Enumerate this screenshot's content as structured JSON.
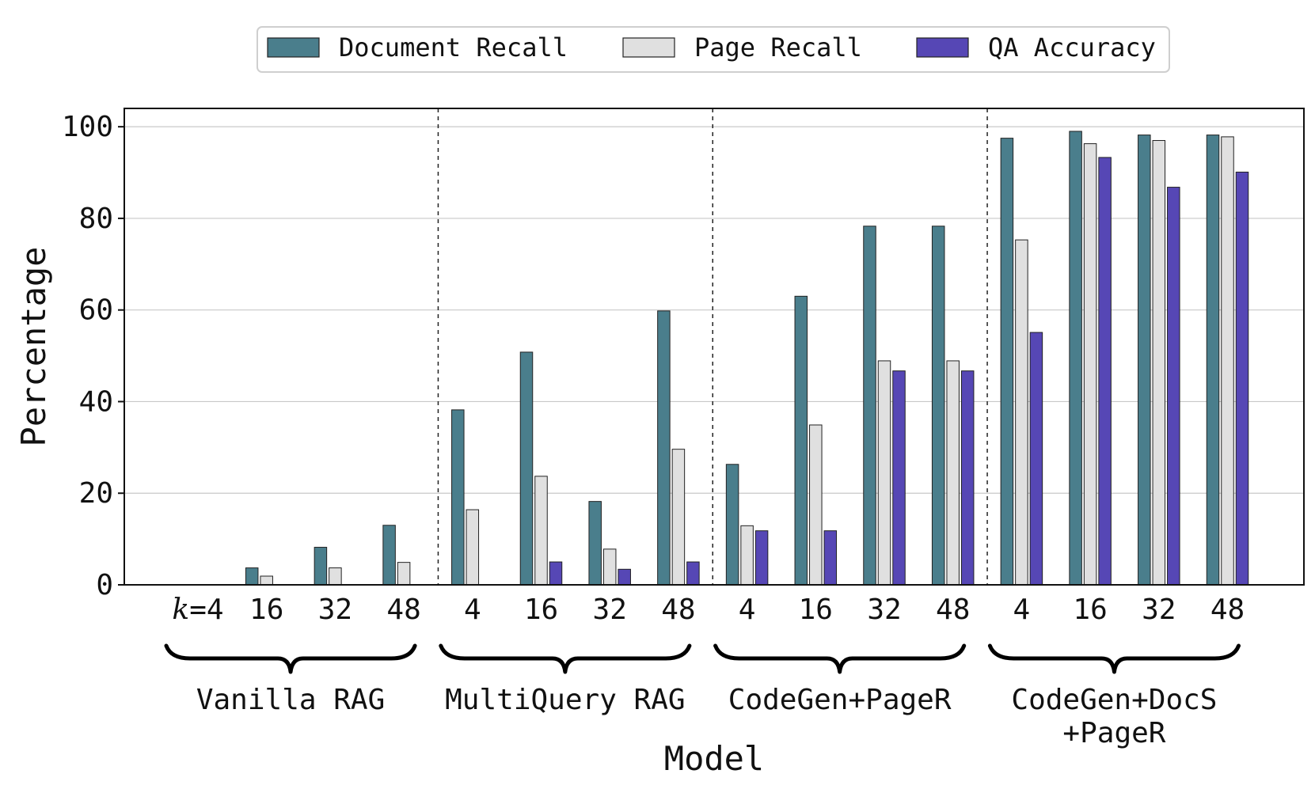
{
  "chart_data": {
    "type": "bar",
    "xlabel": "Model",
    "ylabel": "Percentage",
    "ylim": [
      0,
      104
    ],
    "yticks": [
      0,
      20,
      40,
      60,
      80,
      100
    ],
    "grid": "horizontal",
    "legend_position": "top-center",
    "groups": [
      {
        "label": "Vanilla RAG",
        "ks": [
          "4",
          "16",
          "32",
          "48"
        ]
      },
      {
        "label": "MultiQuery RAG",
        "ks": [
          "4",
          "16",
          "32",
          "48"
        ]
      },
      {
        "label": "CodeGen+PageR",
        "ks": [
          "4",
          "16",
          "32",
          "48"
        ]
      },
      {
        "label": "CodeGen+DocS\n+PageR",
        "ks": [
          "4",
          "16",
          "32",
          "48"
        ]
      }
    ],
    "first_tick_prefix": "k",
    "first_tick_suffix": "=4",
    "series": [
      {
        "name": "Document Recall",
        "color": "#4a7e8c",
        "values": [
          0,
          3.7,
          8.2,
          13.0,
          38.2,
          50.8,
          18.2,
          59.8,
          26.3,
          63.0,
          78.3,
          78.3,
          97.5,
          99.0,
          98.2,
          98.2
        ]
      },
      {
        "name": "Page Recall",
        "color": "#e0e0e0",
        "values": [
          0,
          1.9,
          3.7,
          4.9,
          16.4,
          23.7,
          7.8,
          29.6,
          12.9,
          34.9,
          48.9,
          48.9,
          75.3,
          96.3,
          97.0,
          97.8
        ]
      },
      {
        "name": "QA Accuracy",
        "color": "#5647b5",
        "values": [
          0,
          0,
          0,
          0,
          0,
          5.0,
          3.4,
          5.0,
          11.8,
          11.8,
          46.7,
          46.7,
          55.1,
          93.3,
          86.8,
          90.1
        ]
      }
    ]
  }
}
